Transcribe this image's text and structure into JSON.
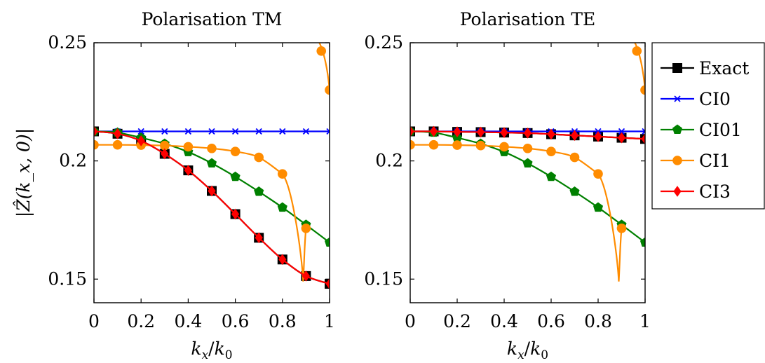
{
  "chart_data": [
    {
      "type": "line",
      "title": "Polarisation TM",
      "xlabel": "k_x/k_0",
      "ylabel": "|Ẑ(k_x, 0)|",
      "xlim": [
        0,
        1
      ],
      "ylim": [
        0.14,
        0.25
      ],
      "xticks": [
        "0",
        "0.2",
        "0.4",
        "0.6",
        "0.8",
        "1"
      ],
      "yticks": [
        "0.15",
        "0.2",
        "0.25"
      ],
      "grid": false,
      "series": [
        {
          "name": "Exact",
          "color": "#000000",
          "marker": "square",
          "x": [
            0,
            0.1,
            0.2,
            0.3,
            0.4,
            0.5,
            0.6,
            0.7,
            0.8,
            0.9,
            1.0
          ],
          "y": [
            0.2125,
            0.2115,
            0.2085,
            0.203,
            0.196,
            0.1873,
            0.1775,
            0.1675,
            0.1583,
            0.1513,
            0.148
          ]
        },
        {
          "name": "CI0",
          "color": "#0000ff",
          "marker": "x",
          "x": [
            0,
            0.1,
            0.2,
            0.3,
            0.4,
            0.5,
            0.6,
            0.7,
            0.8,
            0.9,
            1.0
          ],
          "y": [
            0.2125,
            0.2125,
            0.2125,
            0.2125,
            0.2125,
            0.2125,
            0.2125,
            0.2125,
            0.2125,
            0.2125,
            0.2125
          ]
        },
        {
          "name": "CI01",
          "color": "#008000",
          "marker": "pentagon",
          "x": [
            0,
            0.1,
            0.2,
            0.3,
            0.4,
            0.5,
            0.6,
            0.7,
            0.8,
            0.9,
            1.0
          ],
          "y": [
            0.2125,
            0.212,
            0.2098,
            0.2073,
            0.2038,
            0.199,
            0.1933,
            0.187,
            0.1803,
            0.173,
            0.1655
          ]
        },
        {
          "name": "CI1",
          "color": "#ff8c00",
          "marker": "circle",
          "x": [
            0,
            0.1,
            0.2,
            0.3,
            0.4,
            0.5,
            0.6,
            0.7,
            0.8,
            0.9,
            0.965,
            1.0
          ],
          "y": [
            0.2068,
            0.2068,
            0.2067,
            0.2065,
            0.206,
            0.2053,
            0.204,
            0.2015,
            0.1945,
            0.1715,
            0.2465,
            0.23
          ]
        },
        {
          "name": "CI3",
          "color": "#ff0000",
          "marker": "diamond",
          "x": [
            0,
            0.1,
            0.2,
            0.3,
            0.4,
            0.5,
            0.6,
            0.7,
            0.8,
            0.9,
            1.0
          ],
          "y": [
            0.2125,
            0.2115,
            0.2085,
            0.203,
            0.196,
            0.1873,
            0.1775,
            0.1675,
            0.1583,
            0.1513,
            0.148
          ]
        }
      ]
    },
    {
      "type": "line",
      "title": "Polarisation TE",
      "xlabel": "k_x/k_0",
      "xlim": [
        0,
        1
      ],
      "ylim": [
        0.14,
        0.25
      ],
      "xticks": [
        "0",
        "0.2",
        "0.4",
        "0.6",
        "0.8",
        "1"
      ],
      "yticks": [
        "0.15",
        "0.2",
        "0.25"
      ],
      "grid": false,
      "series": [
        {
          "name": "Exact",
          "color": "#000000",
          "marker": "square",
          "x": [
            0,
            0.1,
            0.2,
            0.3,
            0.4,
            0.5,
            0.6,
            0.7,
            0.8,
            0.9,
            1.0
          ],
          "y": [
            0.2125,
            0.2125,
            0.2123,
            0.2122,
            0.212,
            0.2118,
            0.2113,
            0.2108,
            0.2103,
            0.2098,
            0.2093
          ]
        },
        {
          "name": "CI0",
          "color": "#0000ff",
          "marker": "x",
          "x": [
            0,
            0.1,
            0.2,
            0.3,
            0.4,
            0.5,
            0.6,
            0.7,
            0.8,
            0.9,
            1.0
          ],
          "y": [
            0.2125,
            0.2125,
            0.2125,
            0.2125,
            0.2125,
            0.2125,
            0.2125,
            0.2125,
            0.2125,
            0.2125,
            0.2125
          ]
        },
        {
          "name": "CI01",
          "color": "#008000",
          "marker": "pentagon",
          "x": [
            0,
            0.1,
            0.2,
            0.3,
            0.4,
            0.5,
            0.6,
            0.7,
            0.8,
            0.9,
            1.0
          ],
          "y": [
            0.2125,
            0.212,
            0.2098,
            0.2073,
            0.2038,
            0.199,
            0.1933,
            0.187,
            0.1803,
            0.173,
            0.1655
          ]
        },
        {
          "name": "CI1",
          "color": "#ff8c00",
          "marker": "circle",
          "x": [
            0,
            0.1,
            0.2,
            0.3,
            0.4,
            0.5,
            0.6,
            0.7,
            0.8,
            0.9,
            0.965,
            1.0
          ],
          "y": [
            0.2068,
            0.2068,
            0.2067,
            0.2065,
            0.206,
            0.2053,
            0.204,
            0.2015,
            0.1945,
            0.1715,
            0.2465,
            0.23
          ]
        },
        {
          "name": "CI3",
          "color": "#ff0000",
          "marker": "diamond",
          "x": [
            0,
            0.1,
            0.2,
            0.3,
            0.4,
            0.5,
            0.6,
            0.7,
            0.8,
            0.9,
            1.0
          ],
          "y": [
            0.2125,
            0.2125,
            0.2123,
            0.2122,
            0.212,
            0.2118,
            0.2113,
            0.2108,
            0.2103,
            0.2098,
            0.2093
          ]
        }
      ]
    }
  ],
  "legend": {
    "placement": "right",
    "entries": [
      "Exact",
      "CI0",
      "CI01",
      "CI1",
      "CI3"
    ]
  }
}
